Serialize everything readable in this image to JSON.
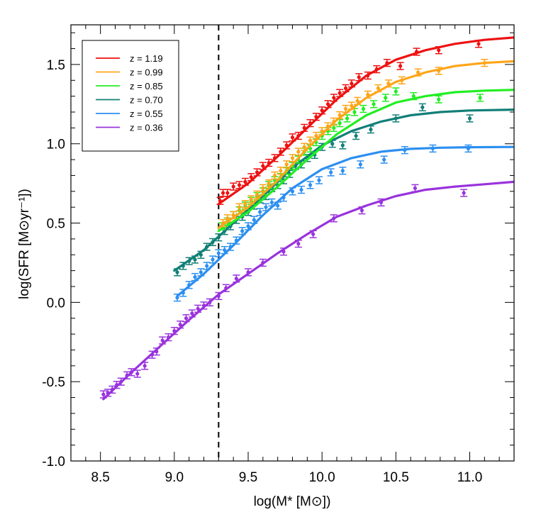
{
  "chart_data": {
    "type": "line",
    "title": "",
    "xlabel": "log(M* [M⊙])",
    "ylabel": "log(SFR [M⊙yr⁻¹])",
    "xlim": [
      8.3,
      11.3
    ],
    "ylim": [
      -1.0,
      1.75
    ],
    "x_ticks": [
      "8.5",
      "9.0",
      "9.5",
      "10.0",
      "10.5",
      "11.0"
    ],
    "y_ticks": [
      "-1.0",
      "-0.5",
      "0.0",
      "0.5",
      "1.0",
      "1.5"
    ],
    "grid": false,
    "legend_position": "top-left",
    "reference_line": {
      "x": 9.3,
      "style": "dashed",
      "color": "#000000"
    },
    "series": [
      {
        "name": "z = 1.19",
        "color": "#ee1111",
        "fit": [
          [
            9.3,
            0.62
          ],
          [
            9.5,
            0.75
          ],
          [
            9.7,
            0.92
          ],
          [
            9.9,
            1.1
          ],
          [
            10.1,
            1.28
          ],
          [
            10.3,
            1.43
          ],
          [
            10.5,
            1.53
          ],
          [
            10.7,
            1.59
          ],
          [
            10.9,
            1.63
          ],
          [
            11.1,
            1.655
          ],
          [
            11.3,
            1.67
          ]
        ],
        "points": [
          [
            9.31,
            0.64
          ],
          [
            9.33,
            0.69
          ],
          [
            9.36,
            0.69
          ],
          [
            9.4,
            0.73
          ],
          [
            9.44,
            0.74
          ],
          [
            9.48,
            0.76
          ],
          [
            9.52,
            0.79
          ],
          [
            9.56,
            0.82
          ],
          [
            9.6,
            0.86
          ],
          [
            9.64,
            0.88
          ],
          [
            9.68,
            0.91
          ],
          [
            9.72,
            0.95
          ],
          [
            9.76,
            0.99
          ],
          [
            9.8,
            1.04
          ],
          [
            9.84,
            1.05
          ],
          [
            9.88,
            1.1
          ],
          [
            9.92,
            1.13
          ],
          [
            9.96,
            1.17
          ],
          [
            10.0,
            1.21
          ],
          [
            10.04,
            1.25
          ],
          [
            10.08,
            1.29
          ],
          [
            10.12,
            1.32
          ],
          [
            10.16,
            1.35
          ],
          [
            10.2,
            1.38
          ],
          [
            10.25,
            1.42
          ],
          [
            10.31,
            1.43
          ],
          [
            10.37,
            1.47
          ],
          [
            10.44,
            1.51
          ],
          [
            10.53,
            1.49
          ],
          [
            10.64,
            1.58
          ],
          [
            10.79,
            1.59
          ],
          [
            11.06,
            1.63
          ]
        ]
      },
      {
        "name": "z = 0.99",
        "color": "#ffa519",
        "fit": [
          [
            9.3,
            0.47
          ],
          [
            9.5,
            0.6
          ],
          [
            9.7,
            0.77
          ],
          [
            9.9,
            0.97
          ],
          [
            10.1,
            1.15
          ],
          [
            10.3,
            1.29
          ],
          [
            10.5,
            1.39
          ],
          [
            10.7,
            1.45
          ],
          [
            10.9,
            1.49
          ],
          [
            11.1,
            1.51
          ],
          [
            11.3,
            1.52
          ]
        ],
        "points": [
          [
            9.33,
            0.5
          ],
          [
            9.36,
            0.53
          ],
          [
            9.4,
            0.55
          ],
          [
            9.44,
            0.6
          ],
          [
            9.48,
            0.62
          ],
          [
            9.52,
            0.65
          ],
          [
            9.56,
            0.68
          ],
          [
            9.6,
            0.72
          ],
          [
            9.64,
            0.75
          ],
          [
            9.68,
            0.8
          ],
          [
            9.72,
            0.83
          ],
          [
            9.76,
            0.87
          ],
          [
            9.8,
            0.91
          ],
          [
            9.84,
            0.95
          ],
          [
            9.88,
            0.98
          ],
          [
            9.92,
            1.02
          ],
          [
            9.96,
            1.05
          ],
          [
            10.0,
            1.08
          ],
          [
            10.04,
            1.11
          ],
          [
            10.08,
            1.14
          ],
          [
            10.12,
            1.18
          ],
          [
            10.16,
            1.22
          ],
          [
            10.2,
            1.24
          ],
          [
            10.24,
            1.27
          ],
          [
            10.31,
            1.31
          ],
          [
            10.38,
            1.35
          ],
          [
            10.45,
            1.38
          ],
          [
            10.54,
            1.4
          ],
          [
            10.65,
            1.45
          ],
          [
            10.79,
            1.46
          ],
          [
            11.1,
            1.51
          ]
        ]
      },
      {
        "name": "z = 0.85",
        "color": "#22ee22",
        "fit": [
          [
            9.3,
            0.45
          ],
          [
            9.5,
            0.57
          ],
          [
            9.7,
            0.73
          ],
          [
            9.9,
            0.9
          ],
          [
            10.1,
            1.06
          ],
          [
            10.3,
            1.18
          ],
          [
            10.5,
            1.26
          ],
          [
            10.7,
            1.3
          ],
          [
            10.9,
            1.325
          ],
          [
            11.1,
            1.335
          ],
          [
            11.3,
            1.34
          ]
        ],
        "points": [
          [
            9.32,
            0.48
          ],
          [
            9.36,
            0.51
          ],
          [
            9.4,
            0.55
          ],
          [
            9.44,
            0.58
          ],
          [
            9.48,
            0.61
          ],
          [
            9.52,
            0.64
          ],
          [
            9.56,
            0.67
          ],
          [
            9.6,
            0.7
          ],
          [
            9.64,
            0.74
          ],
          [
            9.68,
            0.77
          ],
          [
            9.72,
            0.79
          ],
          [
            9.76,
            0.83
          ],
          [
            9.8,
            0.86
          ],
          [
            9.84,
            0.9
          ],
          [
            9.88,
            0.95
          ],
          [
            9.92,
            0.97
          ],
          [
            9.96,
            1.01
          ],
          [
            10.0,
            1.05
          ],
          [
            10.04,
            1.08
          ],
          [
            10.08,
            1.1
          ],
          [
            10.12,
            1.13
          ],
          [
            10.17,
            1.16
          ],
          [
            10.22,
            1.2
          ],
          [
            10.28,
            1.22
          ],
          [
            10.35,
            1.25
          ],
          [
            10.43,
            1.29
          ],
          [
            10.5,
            1.33
          ],
          [
            10.62,
            1.3
          ],
          [
            10.79,
            1.28
          ],
          [
            11.07,
            1.29
          ]
        ]
      },
      {
        "name": "z = 0.70",
        "color": "#117f77",
        "fit": [
          [
            9.0,
            0.2
          ],
          [
            9.2,
            0.33
          ],
          [
            9.4,
            0.5
          ],
          [
            9.6,
            0.67
          ],
          [
            9.8,
            0.85
          ],
          [
            10.0,
            0.99
          ],
          [
            10.2,
            1.08
          ],
          [
            10.4,
            1.14
          ],
          [
            10.6,
            1.18
          ],
          [
            10.8,
            1.2
          ],
          [
            11.0,
            1.21
          ],
          [
            11.3,
            1.215
          ]
        ],
        "points": [
          [
            9.02,
            0.19
          ],
          [
            9.06,
            0.23
          ],
          [
            9.1,
            0.26
          ],
          [
            9.14,
            0.27
          ],
          [
            9.18,
            0.3
          ],
          [
            9.22,
            0.35
          ],
          [
            9.26,
            0.38
          ],
          [
            9.3,
            0.41
          ],
          [
            9.34,
            0.45
          ],
          [
            9.38,
            0.48
          ],
          [
            9.42,
            0.52
          ],
          [
            9.46,
            0.54
          ],
          [
            9.5,
            0.57
          ],
          [
            9.54,
            0.61
          ],
          [
            9.58,
            0.65
          ],
          [
            9.62,
            0.67
          ],
          [
            9.66,
            0.72
          ],
          [
            9.7,
            0.74
          ],
          [
            9.74,
            0.77
          ],
          [
            9.78,
            0.81
          ],
          [
            9.82,
            0.86
          ],
          [
            9.86,
            0.87
          ],
          [
            9.9,
            0.91
          ],
          [
            9.95,
            0.93
          ],
          [
            10.0,
            0.98
          ],
          [
            10.07,
            1.0
          ],
          [
            10.14,
            0.99
          ],
          [
            10.23,
            1.05
          ],
          [
            10.33,
            1.09
          ],
          [
            10.5,
            1.16
          ],
          [
            10.68,
            1.23
          ],
          [
            11.0,
            1.16
          ]
        ]
      },
      {
        "name": "z = 0.55",
        "color": "#2c8ff0",
        "fit": [
          [
            9.02,
            0.04
          ],
          [
            9.2,
            0.18
          ],
          [
            9.4,
            0.36
          ],
          [
            9.6,
            0.55
          ],
          [
            9.8,
            0.72
          ],
          [
            10.0,
            0.84
          ],
          [
            10.2,
            0.91
          ],
          [
            10.4,
            0.95
          ],
          [
            10.6,
            0.968
          ],
          [
            10.8,
            0.975
          ],
          [
            11.0,
            0.978
          ],
          [
            11.3,
            0.98
          ]
        ],
        "points": [
          [
            9.02,
            0.03
          ],
          [
            9.06,
            0.06
          ],
          [
            9.1,
            0.11
          ],
          [
            9.14,
            0.16
          ],
          [
            9.18,
            0.19
          ],
          [
            9.22,
            0.23
          ],
          [
            9.26,
            0.27
          ],
          [
            9.3,
            0.31
          ],
          [
            9.34,
            0.33
          ],
          [
            9.38,
            0.35
          ],
          [
            9.42,
            0.39
          ],
          [
            9.46,
            0.45
          ],
          [
            9.5,
            0.48
          ],
          [
            9.54,
            0.52
          ],
          [
            9.58,
            0.57
          ],
          [
            9.62,
            0.6
          ],
          [
            9.66,
            0.63
          ],
          [
            9.7,
            0.61
          ],
          [
            9.74,
            0.66
          ],
          [
            9.8,
            0.7
          ],
          [
            9.86,
            0.71
          ],
          [
            9.92,
            0.74
          ],
          [
            9.98,
            0.77
          ],
          [
            10.06,
            0.82
          ],
          [
            10.14,
            0.83
          ],
          [
            10.26,
            0.87
          ],
          [
            10.42,
            0.9
          ],
          [
            10.56,
            0.96
          ],
          [
            10.75,
            0.97
          ],
          [
            10.99,
            0.97
          ]
        ]
      },
      {
        "name": "z = 0.36",
        "color": "#9933dd",
        "fit": [
          [
            8.52,
            -0.61
          ],
          [
            8.7,
            -0.45
          ],
          [
            8.9,
            -0.28
          ],
          [
            9.1,
            -0.11
          ],
          [
            9.3,
            0.05
          ],
          [
            9.5,
            0.18
          ],
          [
            9.7,
            0.31
          ],
          [
            9.9,
            0.43
          ],
          [
            10.1,
            0.54
          ],
          [
            10.3,
            0.61
          ],
          [
            10.5,
            0.67
          ],
          [
            10.7,
            0.71
          ],
          [
            10.9,
            0.73
          ],
          [
            11.1,
            0.745
          ],
          [
            11.3,
            0.76
          ]
        ],
        "points": [
          [
            8.52,
            -0.58
          ],
          [
            8.55,
            -0.57
          ],
          [
            8.58,
            -0.55
          ],
          [
            8.61,
            -0.52
          ],
          [
            8.64,
            -0.5
          ],
          [
            8.68,
            -0.46
          ],
          [
            8.71,
            -0.44
          ],
          [
            8.75,
            -0.45
          ],
          [
            8.8,
            -0.4
          ],
          [
            8.85,
            -0.33
          ],
          [
            8.88,
            -0.31
          ],
          [
            8.92,
            -0.24
          ],
          [
            8.96,
            -0.22
          ],
          [
            9.0,
            -0.18
          ],
          [
            9.04,
            -0.14
          ],
          [
            9.08,
            -0.1
          ],
          [
            9.12,
            -0.07
          ],
          [
            9.16,
            -0.04
          ],
          [
            9.2,
            -0.02
          ],
          [
            9.24,
            0.0
          ],
          [
            9.3,
            0.04
          ],
          [
            9.35,
            0.09
          ],
          [
            9.42,
            0.15
          ],
          [
            9.5,
            0.19
          ],
          [
            9.6,
            0.25
          ],
          [
            9.74,
            0.32
          ],
          [
            9.84,
            0.37
          ],
          [
            9.94,
            0.43
          ],
          [
            10.08,
            0.53
          ],
          [
            10.27,
            0.58
          ],
          [
            10.4,
            0.63
          ],
          [
            10.63,
            0.72
          ],
          [
            10.96,
            0.69
          ]
        ]
      }
    ]
  }
}
